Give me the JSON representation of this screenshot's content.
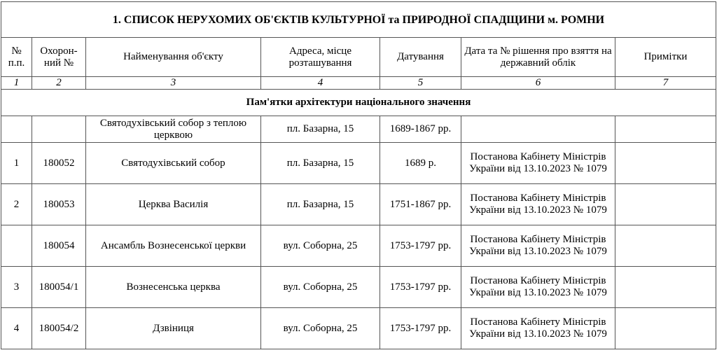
{
  "title": "1. СПИСОК НЕРУХОМИХ ОБ'ЄКТІВ КУЛЬТУРНОЇ та ПРИРОДНОЇ СПАДЩИНИ м. РОМНИ",
  "headers": [
    "№ п.п.",
    "Охорон-ний №",
    "Найменування об'єкту",
    "Адреса, місце розташування",
    "Датування",
    "Дата та № рішення про взяття на державний облік",
    "Примітки"
  ],
  "column_numbers": [
    "1",
    "2",
    "3",
    "4",
    "5",
    "6",
    "7"
  ],
  "section": "Пам'ятки архітектури національного значення",
  "rows": [
    {
      "num": "",
      "code": "",
      "name": "Святодухівський собор з теплою  церквою",
      "address": "пл. Базарна, 15",
      "date": "1689-1867 рр.",
      "decision": "",
      "notes": ""
    },
    {
      "num": "1",
      "code": "180052",
      "name": "Святодухівський собор",
      "address": "пл. Базарна, 15",
      "date": "1689 р.",
      "decision": "Постанова Кабінету Міністрів  України від 13.10.2023 № 1079",
      "notes": ""
    },
    {
      "num": "2",
      "code": "180053",
      "name": "Церква Василія",
      "address": "пл. Базарна, 15",
      "date": "1751-1867 рр.",
      "decision": "Постанова Кабінету Міністрів  України від 13.10.2023 № 1079",
      "notes": ""
    },
    {
      "num": "",
      "code": "180054",
      "name": "Ансамбль Вознесенської церкви",
      "address": "вул. Соборна, 25",
      "date": "1753-1797 рр.",
      "decision": "Постанова Кабінету Міністрів  України від 13.10.2023 № 1079",
      "notes": ""
    },
    {
      "num": "3",
      "code": "180054/1",
      "name": "Вознесенська церква",
      "address": "вул. Соборна, 25",
      "date": "1753-1797 рр.",
      "decision": "Постанова Кабінету Міністрів  України від 13.10.2023 № 1079",
      "notes": ""
    },
    {
      "num": "4",
      "code": "180054/2",
      "name": "Дзвіниця",
      "address": "вул. Соборна, 25",
      "date": "1753-1797 рр.",
      "decision": "Постанова Кабінету Міністрів  України від 13.10.2023 № 1079",
      "notes": ""
    }
  ]
}
